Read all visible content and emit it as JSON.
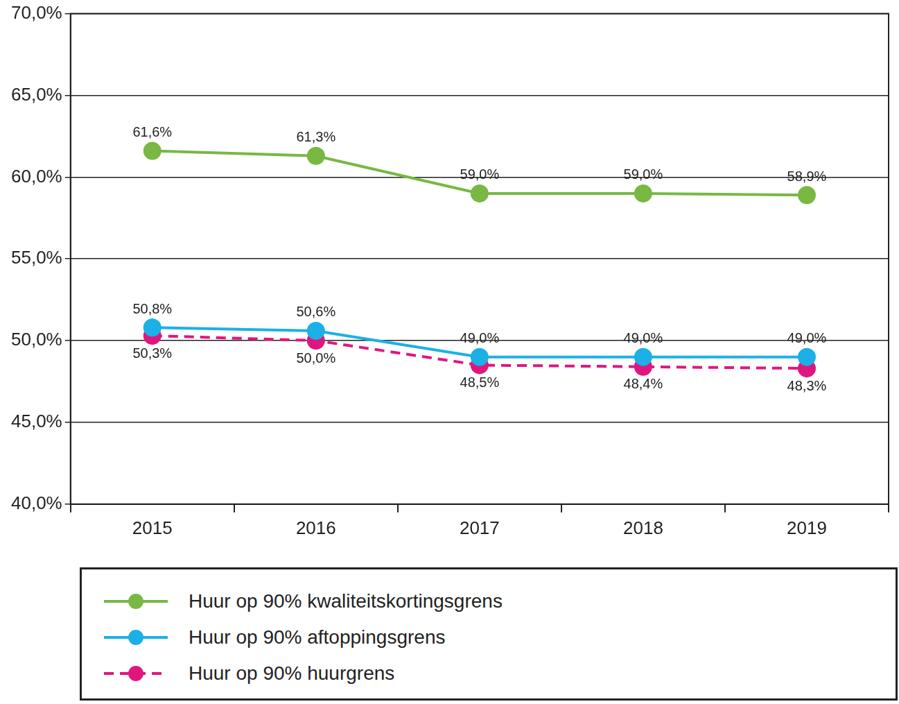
{
  "chart_data": {
    "type": "line",
    "categories": [
      "2015",
      "2016",
      "2017",
      "2018",
      "2019"
    ],
    "series": [
      {
        "name": "Huur op 90% kwaliteitskortingsgrens",
        "color": "#78b843",
        "marker": "circle",
        "line_style": "solid",
        "values": [
          61.6,
          61.3,
          59.0,
          59.0,
          58.9
        ],
        "value_labels": [
          "61,6%",
          "61,3%",
          "59,0%",
          "59,0%",
          "58,9%"
        ]
      },
      {
        "name": "Huur op 90% aftoppingsgrens",
        "color": "#1cb0e6",
        "marker": "circle",
        "line_style": "solid",
        "values": [
          50.8,
          50.6,
          49.0,
          49.0,
          49.0
        ],
        "value_labels": [
          "50,8%",
          "50,6%",
          "49,0%",
          "49,0%",
          "49,0%"
        ]
      },
      {
        "name": "Huur op 90% huurgrens",
        "color": "#e0167f",
        "marker": "circle",
        "line_style": "dashed",
        "values": [
          50.3,
          50.0,
          48.5,
          48.4,
          48.3
        ],
        "value_labels": [
          "50,3%",
          "50,0%",
          "48,5%",
          "48,4%",
          "48,3%"
        ]
      }
    ],
    "ylim": [
      40,
      70
    ],
    "yticks": [
      {
        "value": 40,
        "label": "40,0%"
      },
      {
        "value": 45,
        "label": "45,0%"
      },
      {
        "value": 50,
        "label": "50,0%"
      },
      {
        "value": 55,
        "label": "55,0%"
      },
      {
        "value": 60,
        "label": "60,0%"
      },
      {
        "value": 65,
        "label": "65,0%"
      },
      {
        "value": 70,
        "label": "70,0%"
      }
    ],
    "grid": true,
    "data_labels": true,
    "legend": "bottom"
  }
}
